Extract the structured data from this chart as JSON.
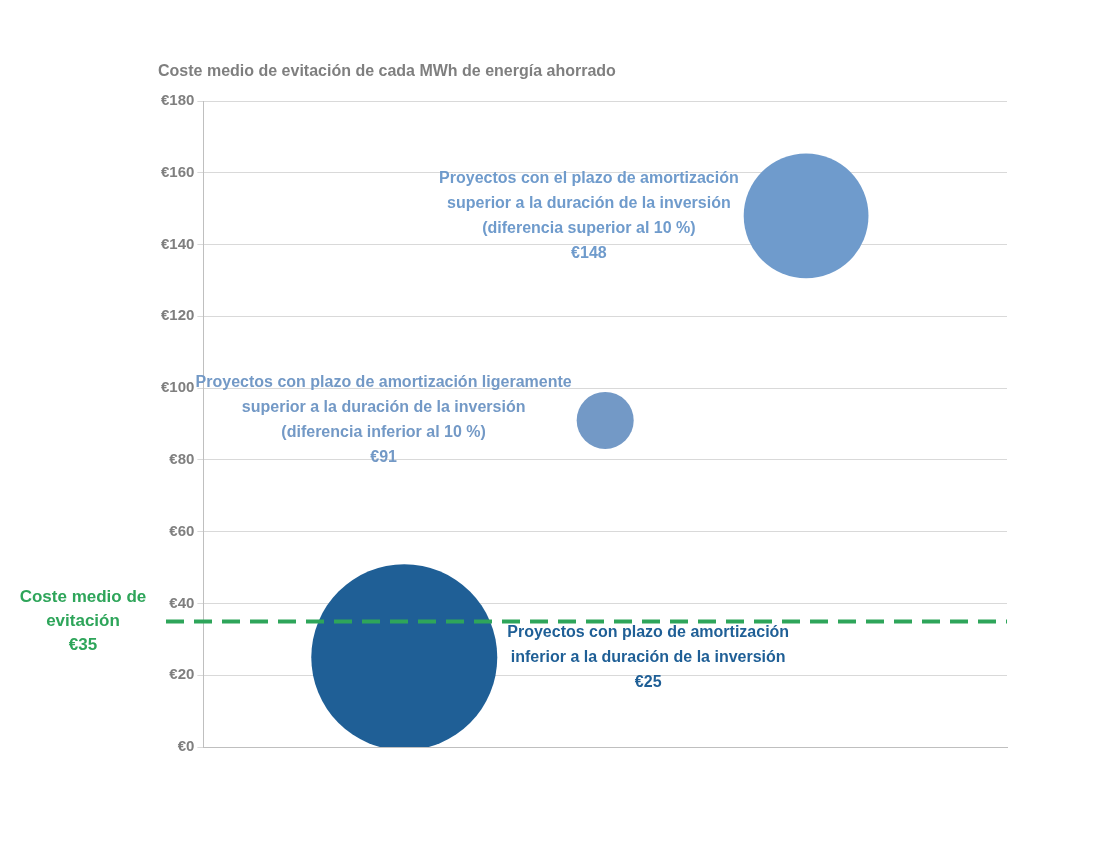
{
  "chart_data": {
    "type": "bubble",
    "title": "Coste medio de evitación de cada MWh de energía ahorrado",
    "categories": [
      null,
      null,
      null
    ],
    "series": [
      {
        "name": "Proyectos con plazo de amortización\ninferior a la duración de la inversión",
        "color": "#1f5f96",
        "values": [
          25,
          null,
          null
        ],
        "sizes": [
          1,
          null,
          null
        ]
      },
      {
        "name": "Proyectos con plazo de amortización ligeramente\nsuperior a la duración de la inversión\n(diferencia inferior al 10 %)",
        "color": "#7399c6",
        "values": [
          null,
          91,
          null
        ],
        "sizes": [
          null,
          0.094,
          null
        ]
      },
      {
        "name": "Proyectos con el plazo de amortización\nsuperior a la duración de la inversión\n(diferencia superior al 10 %)",
        "color": "#6f9bcc",
        "values": [
          null,
          null,
          148
        ],
        "sizes": [
          null,
          null,
          0.45
        ]
      }
    ],
    "annotations": [
      "€25",
      "€91",
      "€148"
    ],
    "ylim": [
      0,
      180
    ],
    "yticks": [
      {
        "value": 0,
        "label": "€0"
      },
      {
        "value": 20,
        "label": "€20"
      },
      {
        "value": 40,
        "label": "€40"
      },
      {
        "value": 60,
        "label": "€60"
      },
      {
        "value": 80,
        "label": "€80"
      },
      {
        "value": 100,
        "label": "€100"
      },
      {
        "value": 120,
        "label": "€120"
      },
      {
        "value": 140,
        "label": "€140"
      },
      {
        "value": 160,
        "label": "€160"
      },
      {
        "value": 180,
        "label": "€180"
      }
    ],
    "grid": "y",
    "legend": false,
    "ref_lines": [
      {
        "axis": "y",
        "value": 35,
        "label": "Coste medio de\nevitación\n€35",
        "color": "#2ea55a",
        "line_style": "dashed"
      }
    ]
  }
}
